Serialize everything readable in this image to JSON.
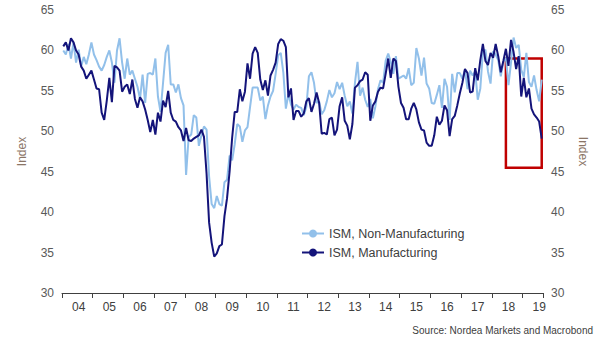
{
  "chart_data": {
    "type": "line",
    "y_label": "Index",
    "y2_label": "Index",
    "source": "Source: Nordea Markets and Macrobond",
    "categories": [
      null,
      null,
      null,
      null,
      null,
      null,
      "04",
      null,
      null,
      null,
      null,
      null,
      null,
      null,
      null,
      null,
      null,
      null,
      "05",
      null,
      null,
      null,
      null,
      null,
      null,
      null,
      null,
      null,
      null,
      null,
      "06",
      null,
      null,
      null,
      null,
      null,
      null,
      null,
      null,
      null,
      null,
      null,
      "07",
      null,
      null,
      null,
      null,
      null,
      null,
      null,
      null,
      null,
      null,
      null,
      "08",
      null,
      null,
      null,
      null,
      null,
      null,
      null,
      null,
      null,
      null,
      null,
      "09",
      null,
      null,
      null,
      null,
      null,
      null,
      null,
      null,
      null,
      null,
      null,
      "10",
      null,
      null,
      null,
      null,
      null,
      null,
      null,
      null,
      null,
      null,
      null,
      "11",
      null,
      null,
      null,
      null,
      null,
      null,
      null,
      null,
      null,
      null,
      null,
      "12",
      null,
      null,
      null,
      null,
      null,
      null,
      null,
      null,
      null,
      null,
      null,
      "13",
      null,
      null,
      null,
      null,
      null,
      null,
      null,
      null,
      null,
      null,
      null,
      "14",
      null,
      null,
      null,
      null,
      null,
      null,
      null,
      null,
      null,
      null,
      null,
      "15",
      null,
      null,
      null,
      null,
      null,
      null,
      null,
      null,
      null,
      null,
      null,
      "16",
      null,
      null,
      null,
      null,
      null,
      null,
      null,
      null,
      null,
      null,
      null,
      "17",
      null,
      null,
      null,
      null,
      null,
      null,
      null,
      null,
      null,
      null,
      null,
      "18",
      null,
      null,
      null,
      null,
      null,
      null,
      null,
      null,
      null,
      null,
      null,
      "19",
      null
    ],
    "series": [
      {
        "name": "ISM, Non-Manufacturing",
        "color": "#92c0ea",
        "values": [
          60.0,
          59.5,
          60.8,
          59.0,
          61.0,
          58.5,
          60.1,
          58.0,
          59.2,
          58.3,
          59.5,
          61.0,
          59.5,
          58.8,
          58.0,
          57.5,
          58.2,
          59.2,
          60.0,
          58.5,
          56.0,
          60.0,
          61.5,
          58.5,
          56.5,
          59.0,
          57.0,
          57.5,
          56.5,
          55.5,
          54.0,
          57.0,
          53.5,
          57.1,
          57.2,
          57.0,
          59.0,
          54.3,
          52.4,
          56.0,
          59.7,
          60.7,
          55.8,
          55.8,
          54.8,
          55.8,
          54.1,
          53.2,
          44.6,
          49.3,
          49.6,
          52.0,
          51.7,
          48.2,
          49.5,
          50.6,
          50.2,
          44.4,
          41.0,
          40.5,
          42.0,
          41.0,
          40.8,
          43.7,
          44.0,
          47.0,
          46.4,
          48.4,
          50.9,
          50.6,
          48.7,
          50.1,
          50.5,
          53.0,
          55.4,
          55.4,
          55.4,
          53.8,
          54.3,
          51.5,
          53.2,
          54.3,
          55.0,
          57.1,
          59.4,
          59.7,
          57.3,
          52.8,
          54.6,
          53.3,
          52.7,
          53.3,
          53.0,
          52.9,
          52.0,
          53.0,
          56.8,
          57.3,
          56.0,
          53.5,
          53.7,
          52.1,
          52.6,
          53.7,
          55.1,
          54.2,
          54.7,
          56.1,
          55.2,
          56.0,
          54.4,
          53.1,
          53.7,
          52.2,
          56.0,
          58.6,
          54.4,
          55.4,
          53.9,
          53.0,
          54.0,
          51.6,
          53.1,
          55.2,
          56.3,
          56.0,
          58.7,
          59.6,
          58.6,
          57.1,
          59.3,
          56.5,
          56.7,
          56.9,
          56.5,
          57.8,
          55.7,
          56.0,
          60.3,
          59.0,
          56.9,
          59.1,
          55.9,
          55.3,
          53.5,
          53.4,
          54.5,
          55.7,
          52.9,
          56.5,
          55.5,
          51.4,
          57.1,
          54.8,
          57.2,
          57.2,
          56.5,
          57.6,
          55.2,
          57.5,
          56.9,
          57.4,
          53.9,
          55.3,
          59.8,
          60.1,
          57.4,
          55.9,
          59.9,
          59.5,
          58.8,
          56.8,
          58.6,
          59.1,
          55.7,
          58.5,
          61.6,
          60.3,
          60.7,
          57.6,
          56.7,
          59.7,
          56.1,
          55.5,
          56.9,
          55.1,
          53.7,
          56.4
        ]
      },
      {
        "name": "ISM, Manufacturing",
        "color": "#14147a",
        "values": [
          60.5,
          61.0,
          60.0,
          61.5,
          61.0,
          60.0,
          59.5,
          58.0,
          57.5,
          56.5,
          57.0,
          57.5,
          56.4,
          55.3,
          55.2,
          52.3,
          51.4,
          53.8,
          56.6,
          53.6,
          58.1,
          57.9,
          57.5,
          54.9,
          55.5,
          55.8,
          54.6,
          56.4,
          54.0,
          52.9,
          54.2,
          53.7,
          52.7,
          51.4,
          49.9,
          51.4,
          49.6,
          52.3,
          51.2,
          53.8,
          53.0,
          55.0,
          52.3,
          51.4,
          51.2,
          50.5,
          50.1,
          48.8,
          50.4,
          48.9,
          48.8,
          49.1,
          49.3,
          49.5,
          50.2,
          49.3,
          44.8,
          38.7,
          36.2,
          34.5,
          34.9,
          35.8,
          36.0,
          39.5,
          41.7,
          45.0,
          49.2,
          52.4,
          52.4,
          55.2,
          53.7,
          54.9,
          58.4,
          56.5,
          59.6,
          60.4,
          59.7,
          56.4,
          55.1,
          56.3,
          54.4,
          56.9,
          57.6,
          58.5,
          60.8,
          61.4,
          61.2,
          60.4,
          54.2,
          55.3,
          51.4,
          52.5,
          52.5,
          51.8,
          52.2,
          53.7,
          54.1,
          52.4,
          53.4,
          54.8,
          53.5,
          49.7,
          49.8,
          49.6,
          51.5,
          51.7,
          49.5,
          50.2,
          53.1,
          54.2,
          51.3,
          50.7,
          49.0,
          50.9,
          55.4,
          55.7,
          56.2,
          56.4,
          57.3,
          57.0,
          51.3,
          53.2,
          53.7,
          54.9,
          55.4,
          55.3,
          57.1,
          59.0,
          56.6,
          59.0,
          58.7,
          55.5,
          53.5,
          52.9,
          51.5,
          51.5,
          52.8,
          53.5,
          52.7,
          51.1,
          50.2,
          50.1,
          48.6,
          48.2,
          48.2,
          49.5,
          51.8,
          50.8,
          51.3,
          53.2,
          52.6,
          49.4,
          51.5,
          51.9,
          53.2,
          54.7,
          56.0,
          57.7,
          57.2,
          54.8,
          54.9,
          57.8,
          56.3,
          58.8,
          60.8,
          58.7,
          58.2,
          59.7,
          59.1,
          60.8,
          59.3,
          57.3,
          58.7,
          60.2,
          58.1,
          61.3,
          59.8,
          57.7,
          59.3,
          54.3,
          56.6,
          54.2,
          55.3,
          52.8,
          52.1,
          51.7,
          51.2,
          49.1
        ]
      }
    ],
    "ylim": [
      30,
      65
    ],
    "yticks": [
      30,
      35,
      40,
      45,
      50,
      55,
      60,
      65
    ],
    "y2lim": [
      30,
      65
    ],
    "y2ticks": [
      30,
      35,
      40,
      45,
      50,
      55,
      60,
      65
    ],
    "highlight": {
      "x": [
        173,
        187
      ],
      "y": [
        45.5,
        59
      ]
    },
    "grid": false,
    "legend": "lower center"
  }
}
